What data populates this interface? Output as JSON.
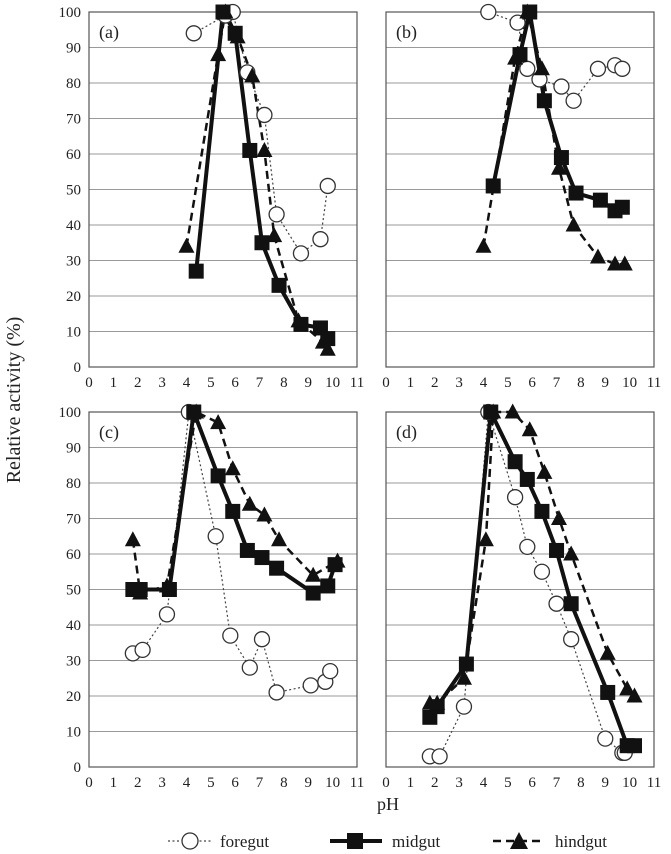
{
  "chart_data": {
    "type": "line",
    "ylabel": "Relative activity  (%)",
    "xlabel": "pH",
    "xlim": [
      0,
      11
    ],
    "ylim": [
      0,
      100
    ],
    "xticks": [
      "0",
      "1",
      "2",
      "3",
      "4",
      "5",
      "6",
      "7",
      "8",
      "9",
      "10",
      "11"
    ],
    "yticks": [
      "0",
      "10",
      "20",
      "30",
      "40",
      "50",
      "60",
      "70",
      "80",
      "90",
      "100"
    ],
    "grid": "horizontal",
    "legend": {
      "placement": "bottom",
      "entries": [
        {
          "name": "foregut",
          "marker": "circle-open",
          "line": "dotted"
        },
        {
          "name": "midgut",
          "marker": "square-filled",
          "line": "solid"
        },
        {
          "name": "hindgut",
          "marker": "triangle-filled",
          "line": "dashed"
        }
      ]
    },
    "panels": [
      {
        "label": "(a)",
        "series": [
          {
            "name": "foregut",
            "points": [
              [
                4.3,
                94
              ],
              [
                5.6,
                99
              ],
              [
                5.9,
                100
              ],
              [
                6.5,
                83
              ],
              [
                7.2,
                71
              ],
              [
                7.7,
                43
              ],
              [
                8.7,
                32
              ],
              [
                9.5,
                36
              ],
              [
                9.8,
                51
              ]
            ]
          },
          {
            "name": "midgut",
            "points": [
              [
                4.4,
                27
              ],
              [
                5.5,
                100
              ],
              [
                6.0,
                94
              ],
              [
                6.6,
                61
              ],
              [
                7.1,
                35
              ],
              [
                7.8,
                23
              ],
              [
                8.7,
                12
              ],
              [
                9.5,
                11
              ],
              [
                9.8,
                8
              ]
            ]
          },
          {
            "name": "hindgut",
            "points": [
              [
                4.0,
                34
              ],
              [
                5.3,
                88
              ],
              [
                5.6,
                100
              ],
              [
                6.1,
                93
              ],
              [
                6.7,
                82
              ],
              [
                7.2,
                61
              ],
              [
                7.6,
                37
              ],
              [
                8.6,
                13
              ],
              [
                9.6,
                7
              ],
              [
                9.8,
                5
              ]
            ]
          }
        ]
      },
      {
        "label": "(b)",
        "series": [
          {
            "name": "foregut",
            "points": [
              [
                4.2,
                100
              ],
              [
                5.4,
                97
              ],
              [
                5.8,
                84
              ],
              [
                6.3,
                81
              ],
              [
                7.2,
                79
              ],
              [
                7.7,
                75
              ],
              [
                8.7,
                84
              ],
              [
                9.4,
                85
              ],
              [
                9.7,
                84
              ]
            ]
          },
          {
            "name": "midgut",
            "points": [
              [
                4.4,
                51
              ],
              [
                5.5,
                88
              ],
              [
                5.9,
                100
              ],
              [
                6.5,
                75
              ],
              [
                7.2,
                59
              ],
              [
                7.8,
                49
              ],
              [
                8.8,
                47
              ],
              [
                9.4,
                44
              ],
              [
                9.7,
                45
              ]
            ]
          },
          {
            "name": "hindgut",
            "points": [
              [
                4.0,
                34
              ],
              [
                5.3,
                87
              ],
              [
                5.8,
                100
              ],
              [
                6.4,
                84
              ],
              [
                7.1,
                56
              ],
              [
                7.7,
                40
              ],
              [
                8.7,
                31
              ],
              [
                9.4,
                29
              ],
              [
                9.8,
                29
              ]
            ]
          }
        ]
      },
      {
        "label": "(c)",
        "series": [
          {
            "name": "foregut",
            "points": [
              [
                1.8,
                32
              ],
              [
                2.2,
                33
              ],
              [
                3.2,
                43
              ],
              [
                4.1,
                100
              ],
              [
                5.2,
                65
              ],
              [
                5.8,
                37
              ],
              [
                6.6,
                28
              ],
              [
                7.1,
                36
              ],
              [
                7.7,
                21
              ],
              [
                9.1,
                23
              ],
              [
                9.7,
                24
              ],
              [
                9.9,
                27
              ]
            ]
          },
          {
            "name": "midgut",
            "points": [
              [
                1.8,
                50
              ],
              [
                2.1,
                50
              ],
              [
                3.3,
                50
              ],
              [
                4.3,
                100
              ],
              [
                5.3,
                82
              ],
              [
                5.9,
                72
              ],
              [
                6.5,
                61
              ],
              [
                7.1,
                59
              ],
              [
                7.7,
                56
              ],
              [
                9.2,
                49
              ],
              [
                9.8,
                51
              ],
              [
                10.1,
                57
              ]
            ]
          },
          {
            "name": "hindgut",
            "points": [
              [
                1.8,
                64
              ],
              [
                2.1,
                49
              ],
              [
                3.2,
                51
              ],
              [
                4.4,
                100
              ],
              [
                5.3,
                97
              ],
              [
                5.9,
                84
              ],
              [
                6.6,
                74
              ],
              [
                7.2,
                71
              ],
              [
                7.8,
                64
              ],
              [
                9.2,
                54
              ],
              [
                10.2,
                58
              ]
            ]
          }
        ]
      },
      {
        "label": "(d)",
        "series": [
          {
            "name": "foregut",
            "points": [
              [
                1.8,
                3
              ],
              [
                2.2,
                3
              ],
              [
                3.2,
                17
              ],
              [
                4.2,
                100
              ],
              [
                5.3,
                76
              ],
              [
                5.8,
                62
              ],
              [
                6.4,
                55
              ],
              [
                7.0,
                46
              ],
              [
                7.6,
                36
              ],
              [
                9.0,
                8
              ],
              [
                9.7,
                4
              ],
              [
                9.8,
                4
              ]
            ]
          },
          {
            "name": "midgut",
            "points": [
              [
                1.8,
                14
              ],
              [
                2.1,
                17
              ],
              [
                3.3,
                29
              ],
              [
                4.3,
                100
              ],
              [
                5.3,
                86
              ],
              [
                5.8,
                81
              ],
              [
                6.4,
                72
              ],
              [
                7.0,
                61
              ],
              [
                7.6,
                46
              ],
              [
                9.1,
                21
              ],
              [
                9.9,
                6
              ],
              [
                10.2,
                6
              ]
            ]
          },
          {
            "name": "hindgut",
            "points": [
              [
                1.8,
                18
              ],
              [
                2.1,
                18
              ],
              [
                3.2,
                25
              ],
              [
                4.1,
                64
              ],
              [
                4.4,
                100
              ],
              [
                5.2,
                100
              ],
              [
                5.9,
                95
              ],
              [
                6.5,
                83
              ],
              [
                7.1,
                70
              ],
              [
                7.6,
                60
              ],
              [
                9.1,
                32
              ],
              [
                9.9,
                22
              ],
              [
                10.2,
                20
              ]
            ]
          }
        ]
      }
    ]
  }
}
